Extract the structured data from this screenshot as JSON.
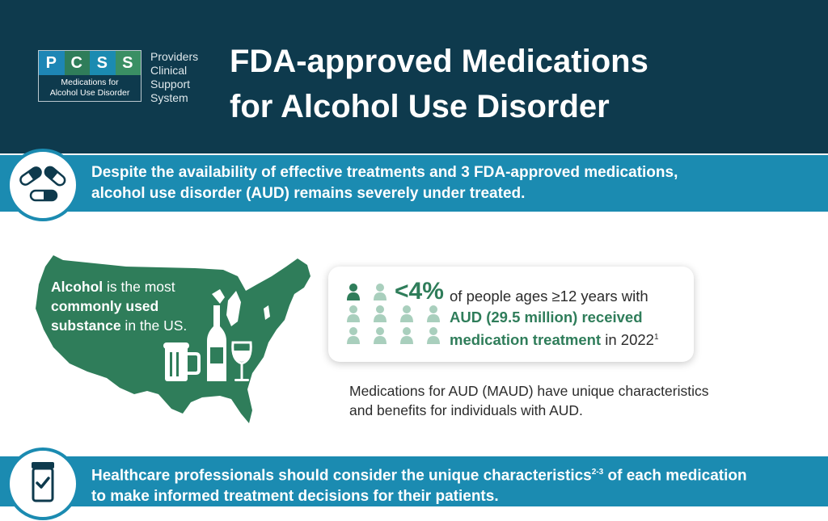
{
  "logo": {
    "letters": [
      "P",
      "C",
      "S",
      "S"
    ],
    "subtitle_line1": "Medications for",
    "subtitle_line2": "Alcohol Use Disorder",
    "side_line1": "Providers",
    "side_line2": "Clinical",
    "side_line3": "Support",
    "side_line4": "System"
  },
  "title": {
    "line1": "FDA-approved Medications",
    "line2": "for Alcohol Use Disorder"
  },
  "banner1": {
    "line1": "Despite the availability of effective treatments and 3 FDA-approved medications,",
    "line2": "alcohol use disorder (AUD) remains severely under treated.",
    "icon": "pill-capsules-icon"
  },
  "map_text": {
    "bold1": "Alcohol",
    "rest1": " is the most",
    "bold2": "commonly used",
    "bold3": "substance",
    "rest3": " in the US."
  },
  "stat": {
    "pct": "<4%",
    "line1": "of people ages ≥12 years with",
    "line2_bold": "AUD (29.5 million) received",
    "line3_bold": "medication treatment",
    "line3_rest": " in 2022",
    "line3_sup": "1"
  },
  "maud": {
    "line1": "Medications for AUD (MAUD) have unique characteristics",
    "line2": "and benefits for individuals with AUD."
  },
  "banner2": {
    "pre": "Healthcare professionals should consider the unique characteristics",
    "sup": "2-3",
    "post": " of each medication",
    "line2": "to make informed treatment decisions for their patients.",
    "icon": "pill-bottle-check-icon"
  },
  "colors": {
    "header_bg": "#0e3a4d",
    "banner_blue": "#1b8bb1",
    "map_green": "#2f7d5a",
    "logo_tile_colors": [
      "#1b8bb1",
      "#2f7d5a",
      "#1b8bb1",
      "#2f7d5a"
    ]
  }
}
